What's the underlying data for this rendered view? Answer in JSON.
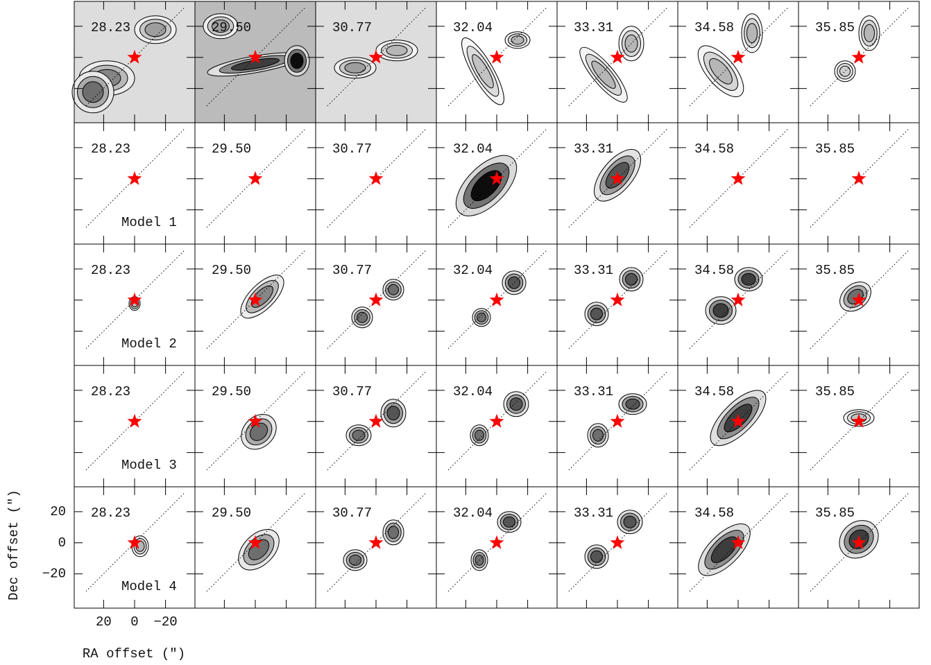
{
  "chart_data": {
    "type": "channel_map",
    "channels": [
      "28.23",
      "29.50",
      "30.77",
      "32.04",
      "33.31",
      "34.58",
      "35.85"
    ],
    "rows": [
      null,
      "Model 1",
      "Model 2",
      "Model 3",
      "Model 4"
    ],
    "xlabel": "RA offset (″)",
    "ylabel": "Dec offset (″)",
    "xlim": [
      39,
      -39
    ],
    "ylim": [
      -42,
      36
    ],
    "xticks": [
      20,
      0,
      {
        "value": -20,
        "label": "−20"
      }
    ],
    "yticks": [
      {
        "value": -20,
        "label": "−20"
      },
      0,
      20
    ],
    "star_color": "#ff0000"
  }
}
